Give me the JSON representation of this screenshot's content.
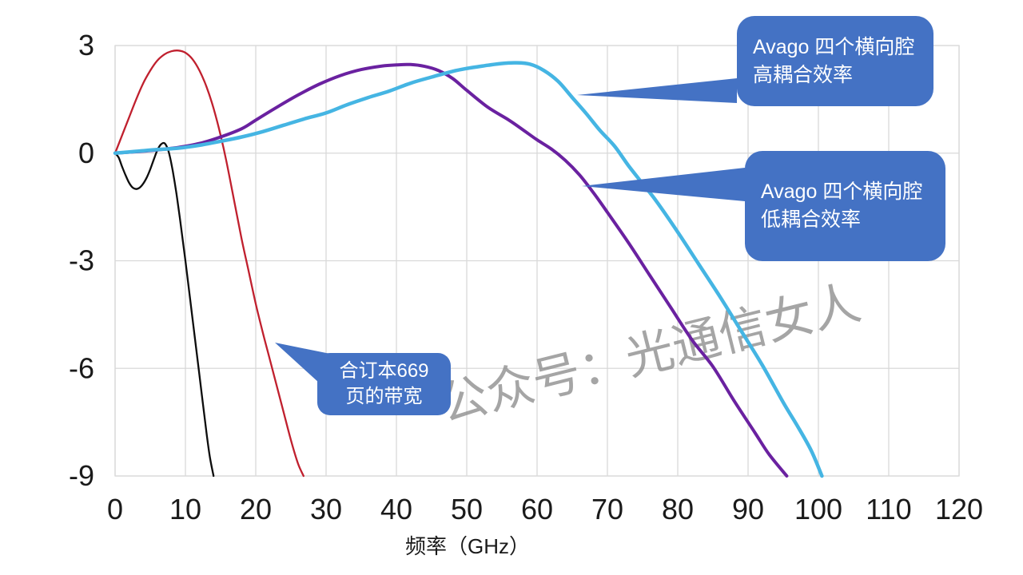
{
  "watermark": {
    "text": "公众号：光通信女人",
    "color": "#8f8f8f",
    "opacity": 0.8
  },
  "palette": {
    "callout_blue": "#4472c4",
    "grid_gray": "#d9d9d9",
    "label_dark": "#1a1a1a"
  },
  "chart_data": {
    "type": "line",
    "title": "",
    "xlabel": "频率（GHz）",
    "ylabel": "",
    "xlim": [
      0,
      120
    ],
    "ylim": [
      -9,
      3
    ],
    "x_ticks": [
      0,
      10,
      20,
      30,
      40,
      50,
      60,
      70,
      80,
      90,
      100,
      110,
      120
    ],
    "y_ticks": [
      3,
      0,
      -3,
      -6,
      -9
    ],
    "grid": true,
    "legend": "none (labels via callout annotations)",
    "series": [
      {
        "name": "black-reference-response",
        "color": "#0d0d0d",
        "width": 2.3,
        "points": [
          [
            0,
            0
          ],
          [
            0.5,
            -0.12
          ],
          [
            1,
            -0.38
          ],
          [
            1.5,
            -0.62
          ],
          [
            2,
            -0.83
          ],
          [
            2.5,
            -0.96
          ],
          [
            3,
            -1.0
          ],
          [
            3.5,
            -0.96
          ],
          [
            4,
            -0.85
          ],
          [
            4.5,
            -0.68
          ],
          [
            5,
            -0.45
          ],
          [
            5.5,
            -0.18
          ],
          [
            6,
            0.08
          ],
          [
            6.5,
            0.24
          ],
          [
            7,
            0.28
          ],
          [
            7.4,
            0.16
          ],
          [
            7.8,
            -0.1
          ],
          [
            8.2,
            -0.5
          ],
          [
            8.7,
            -1.1
          ],
          [
            9.2,
            -1.8
          ],
          [
            10,
            -3.0
          ],
          [
            11,
            -4.6
          ],
          [
            12,
            -6.2
          ],
          [
            13,
            -7.8
          ],
          [
            13.5,
            -8.5
          ],
          [
            14,
            -9
          ]
        ]
      },
      {
        "name": "合订本669页的带宽",
        "color": "#c0202e",
        "width": 2.3,
        "points": [
          [
            0,
            0
          ],
          [
            1,
            0.5
          ],
          [
            2,
            1.0
          ],
          [
            3,
            1.5
          ],
          [
            4,
            1.95
          ],
          [
            5,
            2.3
          ],
          [
            6,
            2.58
          ],
          [
            7,
            2.75
          ],
          [
            8,
            2.84
          ],
          [
            9,
            2.86
          ],
          [
            10,
            2.8
          ],
          [
            11,
            2.62
          ],
          [
            12,
            2.3
          ],
          [
            13,
            1.85
          ],
          [
            14,
            1.25
          ],
          [
            15,
            0.5
          ],
          [
            15.8,
            -0.2
          ],
          [
            17,
            -1.4
          ],
          [
            18,
            -2.4
          ],
          [
            19,
            -3.3
          ],
          [
            20,
            -4.2
          ],
          [
            21,
            -5.0
          ],
          [
            22,
            -5.75
          ],
          [
            23,
            -6.5
          ],
          [
            24,
            -7.25
          ],
          [
            25,
            -8.0
          ],
          [
            26,
            -8.65
          ],
          [
            26.8,
            -9
          ]
        ]
      },
      {
        "name": "Avago 四个横向腔 低耦合效率",
        "color": "#6a21a0",
        "width": 4,
        "points": [
          [
            0,
            0
          ],
          [
            3,
            0.04
          ],
          [
            6,
            0.09
          ],
          [
            9,
            0.16
          ],
          [
            12,
            0.27
          ],
          [
            15,
            0.45
          ],
          [
            18,
            0.68
          ],
          [
            20,
            0.92
          ],
          [
            23,
            1.28
          ],
          [
            26,
            1.62
          ],
          [
            29,
            1.92
          ],
          [
            32,
            2.16
          ],
          [
            35,
            2.33
          ],
          [
            38,
            2.43
          ],
          [
            40,
            2.46
          ],
          [
            42,
            2.47
          ],
          [
            44,
            2.42
          ],
          [
            46,
            2.3
          ],
          [
            48,
            2.08
          ],
          [
            50,
            1.75
          ],
          [
            53,
            1.28
          ],
          [
            56,
            0.92
          ],
          [
            58,
            0.65
          ],
          [
            60,
            0.37
          ],
          [
            62,
            0.12
          ],
          [
            64,
            -0.2
          ],
          [
            66,
            -0.6
          ],
          [
            68,
            -1.1
          ],
          [
            70,
            -1.65
          ],
          [
            73,
            -2.5
          ],
          [
            76,
            -3.4
          ],
          [
            79,
            -4.3
          ],
          [
            82,
            -5.2
          ],
          [
            85,
            -5.95
          ],
          [
            88,
            -6.9
          ],
          [
            91,
            -7.8
          ],
          [
            93,
            -8.4
          ],
          [
            95.5,
            -9
          ]
        ]
      },
      {
        "name": "Avago 四个横向腔 高耦合效率",
        "color": "#45b5e3",
        "width": 4.5,
        "points": [
          [
            0,
            0
          ],
          [
            3,
            0.05
          ],
          [
            6,
            0.1
          ],
          [
            9,
            0.14
          ],
          [
            12,
            0.22
          ],
          [
            15,
            0.33
          ],
          [
            18,
            0.45
          ],
          [
            21,
            0.6
          ],
          [
            24,
            0.78
          ],
          [
            27,
            0.96
          ],
          [
            30,
            1.12
          ],
          [
            33,
            1.35
          ],
          [
            36,
            1.55
          ],
          [
            39,
            1.73
          ],
          [
            42,
            1.95
          ],
          [
            45,
            2.12
          ],
          [
            48,
            2.28
          ],
          [
            50,
            2.36
          ],
          [
            53,
            2.45
          ],
          [
            55,
            2.5
          ],
          [
            57,
            2.52
          ],
          [
            59,
            2.48
          ],
          [
            61,
            2.3
          ],
          [
            63,
            2.0
          ],
          [
            65,
            1.55
          ],
          [
            67,
            1.1
          ],
          [
            69,
            0.62
          ],
          [
            71,
            0.2
          ],
          [
            73,
            -0.35
          ],
          [
            75,
            -0.85
          ],
          [
            77,
            -1.35
          ],
          [
            80,
            -2.2
          ],
          [
            83,
            -3.1
          ],
          [
            86,
            -4.0
          ],
          [
            89,
            -4.95
          ],
          [
            92,
            -5.9
          ],
          [
            95,
            -6.95
          ],
          [
            97,
            -7.6
          ],
          [
            99,
            -8.3
          ],
          [
            100.5,
            -9
          ]
        ]
      }
    ],
    "annotations": [
      {
        "id": "high-coupling",
        "line1": "Avago 四个横向腔",
        "line2": "高耦合效率",
        "points_to_series": "Avago 四个横向腔 高耦合效率"
      },
      {
        "id": "low-coupling",
        "line1": "Avago 四个横向腔",
        "line2": "低耦合效率",
        "points_to_series": "Avago 四个横向腔 低耦合效率"
      },
      {
        "id": "bandwidth-669",
        "line1": "合订本669",
        "line2": "页的带宽",
        "points_to_series": "合订本669页的带宽"
      }
    ]
  }
}
